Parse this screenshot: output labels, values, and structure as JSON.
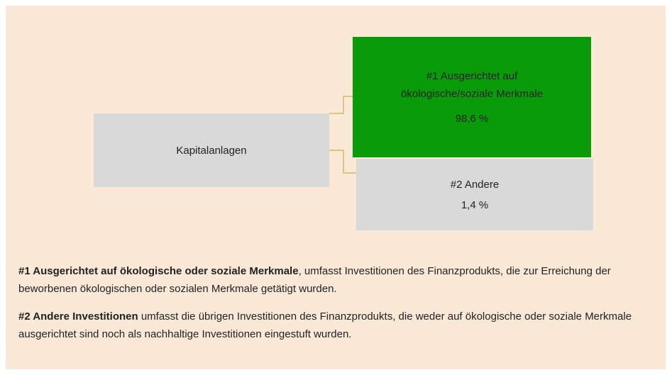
{
  "nodes": [
    {
      "label": "Kapitalanlagen"
    },
    {
      "label_lines": [
        "#1 Ausgerichtet auf",
        "ökologische/soziale Merkmale"
      ],
      "share": "98,6 %"
    },
    {
      "label_lines": [
        "#2 Andere"
      ],
      "share": "1,4 %"
    }
  ],
  "notes": [
    {
      "term": "#1 Ausgerichtet auf ökologische oder soziale Merkmale",
      "text": ", umfasst Investitionen des Finanzprodukts, die zur Erreichung der beworbenen ökologischen oder sozialen Merkmale getätigt wurden."
    },
    {
      "term": "#2 Andere Investitionen",
      "text": " umfasst die übrigen Investitionen des Finanzprodukts, die weder auf ökologische oder soziale Merkmale ausgerichtet sind noch als nachhaltige Investitionen eingestuft wurden."
    }
  ]
}
